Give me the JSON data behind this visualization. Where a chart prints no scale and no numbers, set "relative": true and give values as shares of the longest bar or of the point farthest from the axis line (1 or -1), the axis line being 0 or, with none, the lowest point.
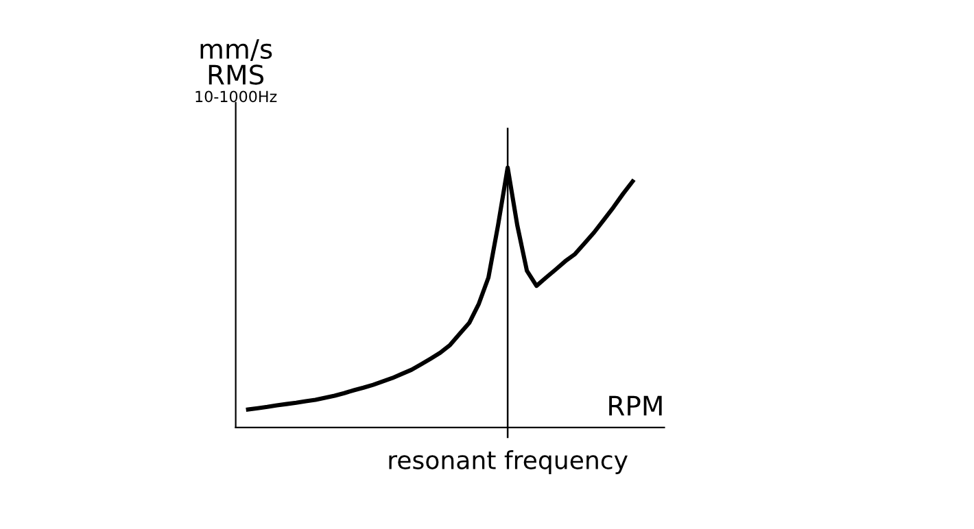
{
  "chart_data": {
    "type": "line",
    "relative": true,
    "ylabel": "mm/s\nRMS",
    "xlabel": "RPM",
    "annotations": [
      "10-1000Hz",
      "resonant frequency"
    ],
    "categories": [
      null,
      null,
      null,
      null,
      null,
      null,
      null,
      null,
      null,
      null,
      null,
      null,
      null,
      null,
      null,
      null,
      null,
      null,
      null,
      null,
      null,
      null,
      null,
      null,
      null,
      null,
      null,
      null,
      null,
      null,
      null,
      null,
      null,
      null,
      null,
      null,
      null,
      null,
      null,
      null,
      null
    ],
    "series": [
      {
        "color": "#000000",
        "values": [
          0.069,
          0.074,
          0.079,
          0.085,
          0.09,
          0.095,
          0.101,
          0.106,
          0.114,
          0.122,
          0.132,
          0.143,
          0.153,
          0.164,
          0.177,
          0.19,
          0.206,
          0.222,
          0.243,
          0.265,
          0.288,
          0.317,
          0.36,
          0.402,
          0.476,
          0.577,
          0.778,
          1.0,
          0.778,
          0.603,
          0.545,
          0.577,
          0.608,
          0.64,
          0.667,
          0.709,
          0.751,
          0.799,
          0.847,
          0.899,
          0.947
        ]
      }
    ]
  }
}
